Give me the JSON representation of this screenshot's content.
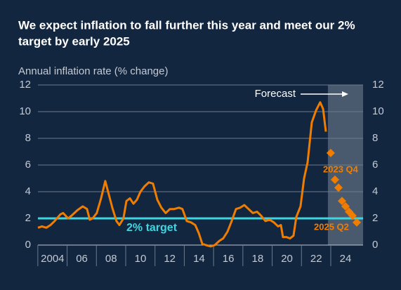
{
  "chart_data": {
    "type": "line",
    "title": [
      "We expect inflation to fall further this year and meet our 2%",
      "target by early 2025"
    ],
    "y_label": "Annual inflation rate (% change)",
    "xlim": [
      2003,
      2025.2
    ],
    "ylim": [
      0,
      12
    ],
    "yticks": [
      0,
      2,
      4,
      6,
      8,
      10,
      12
    ],
    "xticks": [
      2004,
      {
        "value": 2006,
        "label": "06"
      },
      {
        "value": 2008,
        "label": "08"
      },
      {
        "value": 2010,
        "label": "10"
      },
      {
        "value": 2012,
        "label": "12"
      },
      {
        "value": 2014,
        "label": "14"
      },
      {
        "value": 2016,
        "label": "16"
      },
      {
        "value": 2018,
        "label": "18"
      },
      {
        "value": 2020,
        "label": "20"
      },
      {
        "value": 2022,
        "label": "22"
      },
      {
        "value": 2024,
        "label": "24"
      }
    ],
    "grid": true,
    "outturn": {
      "color": "#f07d00",
      "x": [
        2003.0,
        2003.28,
        2003.57,
        2003.86,
        2004.14,
        2004.53,
        2004.72,
        2005.06,
        2005.29,
        2005.68,
        2006.06,
        2006.35,
        2006.54,
        2006.73,
        2007.02,
        2007.31,
        2007.6,
        2007.84,
        2008.08,
        2008.36,
        2008.56,
        2008.84,
        2009.04,
        2009.28,
        2009.52,
        2009.76,
        2010.0,
        2010.28,
        2010.57,
        2010.86,
        2011.15,
        2011.43,
        2011.72,
        2012.01,
        2012.3,
        2012.63,
        2012.87,
        2013.16,
        2013.45,
        2013.74,
        2013.98,
        2014.22,
        2014.46,
        2014.79,
        2015.08,
        2015.37,
        2015.65,
        2015.94,
        2016.23,
        2016.52,
        2016.81,
        2017.09,
        2017.38,
        2017.67,
        2017.96,
        2018.24,
        2018.53,
        2018.82,
        2019.11,
        2019.4,
        2019.59,
        2019.73,
        2019.97,
        2020.21,
        2020.45,
        2020.64,
        2020.93,
        2021.17,
        2021.41,
        2021.7,
        2021.99,
        2022.27,
        2022.47,
        2022.66
      ],
      "values": [
        1.3,
        1.4,
        1.3,
        1.5,
        1.8,
        2.3,
        2.4,
        2.0,
        2.2,
        2.6,
        2.9,
        2.7,
        1.9,
        2.0,
        2.4,
        3.5,
        4.8,
        3.8,
        2.8,
        1.8,
        1.5,
        2.0,
        3.3,
        3.5,
        3.1,
        3.4,
        4.0,
        4.4,
        4.7,
        4.6,
        3.4,
        2.8,
        2.4,
        2.7,
        2.7,
        2.8,
        2.7,
        1.8,
        1.7,
        1.5,
        0.9,
        0.1,
        0.0,
        -0.1,
        0.0,
        0.3,
        0.5,
        1.0,
        1.8,
        2.7,
        2.8,
        3.0,
        2.7,
        2.4,
        2.5,
        2.2,
        1.8,
        1.9,
        1.7,
        1.4,
        1.5,
        0.6,
        0.6,
        0.5,
        0.7,
        2.1,
        2.9,
        5.0,
        6.2,
        9.2,
        10.1,
        10.7,
        10.2,
        8.5
      ]
    },
    "forecast": {
      "color": "#f07d00",
      "start": 2022.8,
      "label": "Forecast",
      "x": [
        2022.99,
        2023.28,
        2023.52,
        2023.76,
        2024.0,
        2024.24,
        2024.48,
        2024.77
      ],
      "values": [
        6.9,
        4.9,
        4.3,
        3.3,
        2.9,
        2.5,
        2.2,
        1.7
      ],
      "first_label": "2023 Q4",
      "last_label": "2025 Q2"
    },
    "target": {
      "value": 2,
      "label": "2% target",
      "color": "#3dd6e0"
    }
  }
}
